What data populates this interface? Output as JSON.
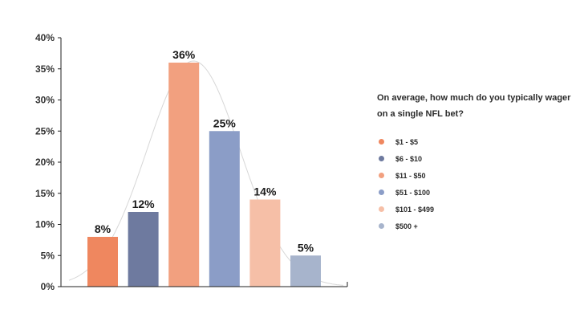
{
  "chart_data": {
    "type": "bar",
    "title": "On average, how much do you typically wager on a single NFL bet?",
    "categories": [
      "$1 - $5",
      "$6 - $10",
      "$11 - $50",
      "$51 - $100",
      "$101 - $499",
      "$500 +"
    ],
    "values": [
      8,
      12,
      36,
      25,
      14,
      5
    ],
    "data_labels": [
      "8%",
      "12%",
      "36%",
      "25%",
      "14%",
      "5%"
    ],
    "ylim": [
      0,
      40
    ],
    "yticks": [
      "0%",
      "5%",
      "10%",
      "15%",
      "20%",
      "25%",
      "30%",
      "35%",
      "40%"
    ],
    "ytick_values": [
      0,
      5,
      10,
      15,
      20,
      25,
      30,
      35,
      40
    ],
    "grid": false,
    "legend_position": "right",
    "colors": [
      "#ef875f",
      "#6e7a9f",
      "#f2a07f",
      "#8b9dc7",
      "#f6bfa7",
      "#a7b4cc"
    ],
    "trend_curve_color": "#d7d7d7",
    "axis_color": "#222222"
  }
}
